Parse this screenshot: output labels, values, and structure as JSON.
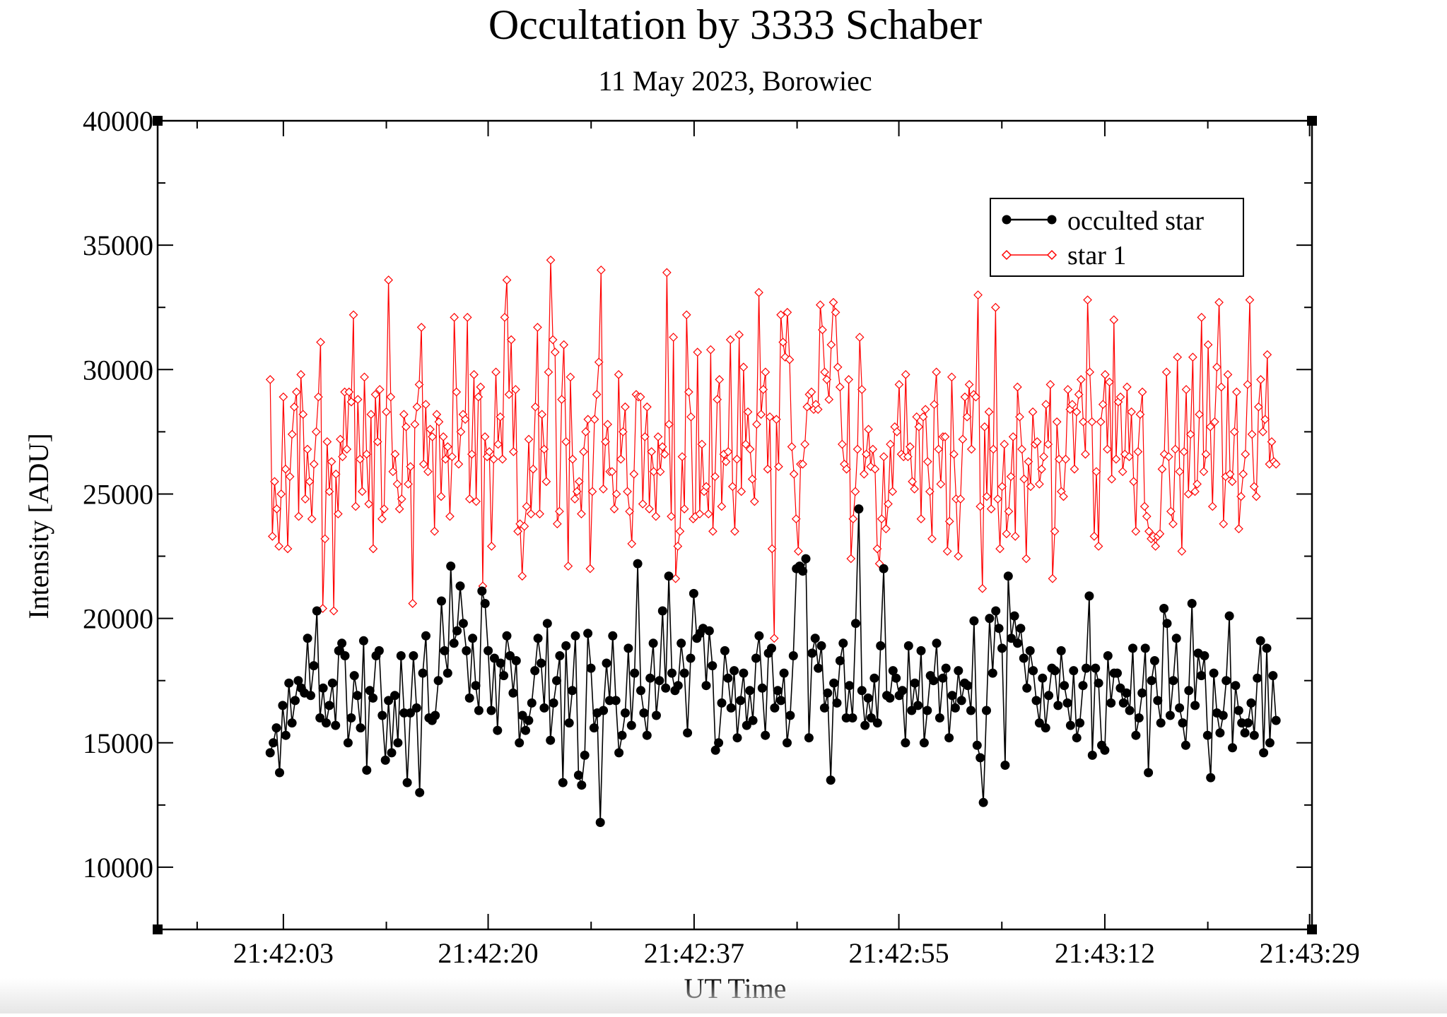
{
  "chart_data": {
    "type": "line",
    "title": "Occultation by 3333 Schaber",
    "subtitle": "11 May 2023, Borowiec",
    "xlabel": "UT Time",
    "ylabel": "Intensity [ADU]",
    "x_range": [
      "21:41:53",
      "21:43:29"
    ],
    "xlim_seconds_after_2142": [
      -7.4,
      89.0
    ],
    "ylim": [
      7500,
      40000
    ],
    "y_ticks": [
      10000,
      15000,
      20000,
      25000,
      30000,
      35000,
      40000
    ],
    "y_tick_labels": [
      "10000",
      "15000",
      "20000",
      "25000",
      "30000",
      "35000",
      "40000"
    ],
    "x_ticks_seconds": [
      3.1,
      20.2,
      37.4,
      54.5,
      71.7,
      88.8
    ],
    "x_tick_labels": [
      "21:42:03",
      "21:42:20",
      "21:42:37",
      "21:42:55",
      "21:43:12",
      "21:43:29"
    ],
    "x_minor_seconds": [
      -4.1,
      11.7,
      28.8,
      46.0,
      63.1,
      80.3
    ],
    "y_minor": [
      7500,
      12500,
      17500,
      22500,
      27500,
      32500,
      37500
    ],
    "grid": false,
    "legend_position": "top-right",
    "sample_times": {
      "start_seconds": 2.0,
      "end_seconds": 86.0
    },
    "series": [
      {
        "name": "occulted star",
        "color": "#000000",
        "marker": "filled-circle",
        "values": [
          14600,
          15000,
          15600,
          13800,
          16500,
          15300,
          17400,
          15800,
          16700,
          17500,
          17200,
          17000,
          19200,
          16900,
          18100,
          20300,
          16000,
          17200,
          15800,
          16500,
          17400,
          15700,
          18700,
          19000,
          18500,
          15000,
          16000,
          17700,
          16900,
          15600,
          19100,
          13900,
          17100,
          16800,
          18500,
          18700,
          16100,
          14300,
          16700,
          14600,
          16900,
          15000,
          18500,
          16200,
          13400,
          16200,
          18500,
          16400,
          13000,
          17800,
          19300,
          16000,
          15900,
          16100,
          17500,
          20700,
          18700,
          17800,
          22100,
          19000,
          19500,
          21300,
          19800,
          18700,
          16800,
          19200,
          17300,
          16300,
          21100,
          20600,
          18700,
          16300,
          18400,
          15500,
          18200,
          17700,
          19300,
          18500,
          17000,
          18300,
          15000,
          16100,
          15500,
          15900,
          16600,
          17900,
          19200,
          18200,
          16400,
          19800,
          15100,
          16600,
          17500,
          18500,
          13400,
          18900,
          15800,
          17100,
          19300,
          13700,
          13300,
          14500,
          19400,
          18000,
          15600,
          16200,
          11800,
          16300,
          18200,
          16700,
          19300,
          16700,
          14600,
          15300,
          16200,
          18800,
          15700,
          17800,
          22200,
          17100,
          16200,
          15300,
          17600,
          19000,
          16100,
          17500,
          20300,
          17200,
          21700,
          17800,
          17100,
          17300,
          19000,
          17800,
          15400,
          18400,
          21000,
          19200,
          19400,
          19600,
          17300,
          19500,
          18100,
          14700,
          15000,
          16600,
          18700,
          17600,
          16400,
          17900,
          15200,
          16700,
          17800,
          15700,
          17100,
          15900,
          18400,
          19300,
          17200,
          15300,
          18600,
          18800,
          16400,
          17100,
          16700,
          17800,
          15000,
          16100,
          18500,
          22000,
          22100,
          21900,
          22400,
          15200,
          18600,
          19200,
          18000,
          18900,
          16400,
          17000,
          13500,
          17400,
          16600,
          18300,
          19000,
          16000,
          17300,
          16000,
          19800,
          24400,
          17100,
          15700,
          16800,
          16000,
          17600,
          15800,
          18900,
          22000,
          16900,
          16800,
          17900,
          17600,
          16900,
          17100,
          15000,
          18900,
          16300,
          17400,
          16500,
          18700,
          15000,
          16300,
          17700,
          17500,
          19000,
          16000,
          17600,
          18000,
          15200,
          16900,
          16400,
          17900,
          16700,
          17400,
          17300,
          16300,
          19900,
          14900,
          14400,
          12600,
          16300,
          20000,
          17800,
          20300,
          19600,
          18800,
          14100,
          21700,
          19200,
          20100,
          19000,
          19600,
          18400,
          17200,
          18700,
          17900,
          16700,
          15800,
          17600,
          15600,
          16900,
          18000,
          17900,
          16500,
          18700,
          17300,
          16600,
          15700,
          17900,
          15200,
          15800,
          17300,
          18000,
          20900,
          14500,
          18000,
          17400,
          14900,
          14700,
          18500,
          16600,
          17800,
          17800,
          17200,
          16600,
          17000,
          16300,
          18800,
          15300,
          16000,
          17000,
          18800,
          13800,
          17500,
          18300,
          16700,
          15800,
          20400,
          19800,
          16100,
          17500,
          19200,
          16400,
          15800,
          14900,
          17100,
          20600,
          16500,
          18600,
          17700,
          18500,
          15300,
          13600,
          17800,
          16200,
          15400,
          16100,
          17500,
          20100,
          14800,
          17300,
          16300,
          15800,
          15400,
          15800,
          16600,
          15300,
          17600,
          19100,
          14600,
          18800,
          15000,
          17700,
          15900
        ],
        "displayed_extrema": {
          "max": 24400,
          "min": 11800
        }
      },
      {
        "name": "star 1",
        "color": "#ff0000",
        "marker": "open-diamond",
        "values": [
          29600,
          23300,
          25500,
          24400,
          22900,
          25000,
          28900,
          26000,
          22800,
          25700,
          27400,
          28500,
          29100,
          24100,
          29800,
          28200,
          24800,
          26800,
          25500,
          24000,
          26200,
          27500,
          28900,
          31100,
          20400,
          23200,
          27100,
          25100,
          26300,
          20300,
          25800,
          24200,
          27200,
          26500,
          29100,
          26800,
          29100,
          28700,
          32200,
          24500,
          28800,
          26400,
          25100,
          29700,
          26600,
          24600,
          28200,
          22800,
          29000,
          27100,
          29200,
          24000,
          24400,
          28300,
          33600,
          28900,
          25900,
          26600,
          25400,
          24400,
          24800,
          28200,
          27700,
          25400,
          26100,
          20600,
          27800,
          28500,
          29400,
          31700,
          26200,
          28600,
          25900,
          27600,
          27300,
          23500,
          28200,
          27900,
          24900,
          27300,
          26400,
          26900,
          24100,
          26500,
          32100,
          29100,
          26200,
          27500,
          28200,
          28000,
          32100,
          24800,
          26600,
          29800,
          24700,
          28900,
          29300,
          21300,
          27300,
          26500,
          26700,
          22900,
          26400,
          29900,
          27000,
          28100,
          26400,
          32100,
          33600,
          29000,
          31200,
          26700,
          29200,
          23500,
          23800,
          21700,
          23700,
          24500,
          27200,
          24200,
          26000,
          28500,
          31700,
          24200,
          28200,
          26800,
          25500,
          29900,
          34400,
          31200,
          30700,
          23800,
          24300,
          28800,
          31000,
          27100,
          22100,
          29700,
          26400,
          24800,
          25100,
          25500,
          24200,
          26700,
          27500,
          28000,
          22000,
          25100,
          28000,
          29000,
          30300,
          34000,
          25200,
          27100,
          27800,
          25900,
          25900,
          24400,
          25000,
          29800,
          26400,
          27500,
          28500,
          25100,
          24300,
          23000,
          25800,
          29000,
          28900,
          28900,
          24600,
          27300,
          28500,
          24400,
          26700,
          25900,
          24100,
          27300,
          25900,
          26900,
          26600,
          33900,
          27800,
          24100,
          31300,
          21600,
          22900,
          23500,
          26500,
          24400,
          32200,
          29100,
          28100,
          24000,
          24100,
          30700,
          24200,
          27000,
          25100,
          25300,
          24200,
          30800,
          23500,
          25700,
          28800,
          29600,
          24500,
          26600,
          26300,
          26700,
          31200,
          25300,
          23500,
          26400,
          31400,
          25100,
          30100,
          27000,
          28300,
          26800,
          25600,
          24700,
          27800,
          33100,
          28200,
          29200,
          29900,
          26000,
          28100,
          22800,
          19200,
          28000,
          26100,
          32200,
          31100,
          30500,
          32300,
          30400,
          26900,
          25800,
          24000,
          22700,
          26200,
          26200,
          27000,
          28500,
          29000,
          29100,
          28400,
          28600,
          28400,
          32600,
          31600,
          29900,
          29600,
          28800,
          31000,
          32700,
          32300,
          30100,
          29300,
          27000,
          26200,
          26000,
          29600,
          22400,
          24000,
          25100,
          26800,
          31300,
          29200,
          25800,
          26600,
          27600,
          26100,
          26800,
          26000,
          22800,
          22200,
          24000,
          26500,
          23600,
          24600,
          27000,
          25100,
          27700,
          27500,
          29400,
          26600,
          26500,
          29800,
          26500,
          26900,
          25500,
          25200,
          28100,
          27700,
          24000,
          28100,
          28400,
          26300,
          25100,
          23200,
          28600,
          29900,
          26800,
          25400,
          27300,
          27300,
          22700,
          23900,
          29700,
          26600,
          24800,
          22500,
          24800,
          27200,
          28900,
          28100,
          29400,
          26800,
          29000,
          28900,
          33000,
          24500,
          21200,
          27700,
          24900,
          28300,
          24400,
          26800,
          32500,
          24800,
          22800,
          25300,
          27000,
          23400,
          24300,
          25700,
          27300,
          23300,
          29300,
          28100,
          26800,
          25600,
          22400,
          26300,
          25300,
          28300,
          27000,
          27100,
          25400,
          26000,
          26500,
          28600,
          27000,
          29400,
          21600,
          23500,
          27900,
          26400,
          25100,
          24900,
          26400,
          29200,
          28400,
          28600,
          26000,
          28300,
          29000,
          29600,
          27900,
          26600,
          32800,
          29900,
          27900,
          23300,
          25900,
          22900,
          27900,
          28600,
          29800,
          26800,
          29500,
          25600,
          32000,
          26400,
          28700,
          28900,
          25900,
          26600,
          29300,
          26500,
          28300,
          25500,
          23500,
          26700,
          28200,
          29100,
          24500,
          24100,
          23500,
          23200,
          23300,
          22900,
          23300,
          23400,
          26000,
          26600,
          29900,
          26500,
          24300,
          23800,
          26800,
          30500,
          25900,
          22700,
          26700,
          29200,
          25000,
          27400,
          30500,
          25100,
          25400,
          28200,
          32100,
          25900,
          26600,
          31000,
          27700,
          24500,
          27900,
          30100,
          32700,
          29300,
          23800,
          25700,
          29800,
          25800,
          25500,
          27500,
          29100,
          23600,
          24900,
          25800,
          26600,
          29400,
          32800,
          27400,
          25300,
          24900,
          28500,
          29600,
          27500,
          28000,
          30600,
          26200,
          27100,
          26300,
          26200
        ],
        "displayed_extrema": {
          "max": 34400,
          "min": 19200
        }
      }
    ]
  }
}
